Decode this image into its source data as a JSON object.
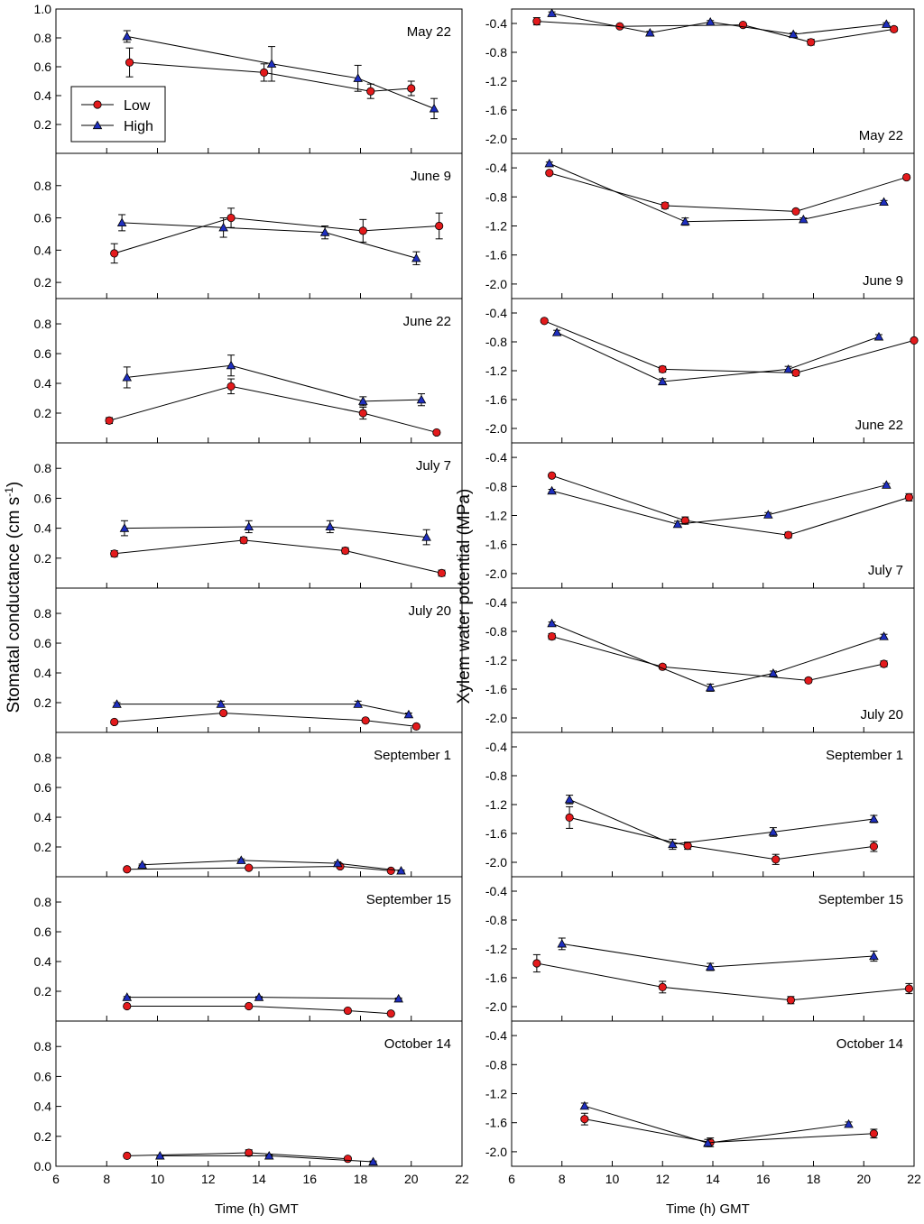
{
  "colors": {
    "low": "#e31a1c",
    "high": "#1f2fbf",
    "axis": "#000000"
  },
  "legend": {
    "low_label": "Low",
    "high_label": "High"
  },
  "left_ylabel_main": "Stomatal conductance (cm s",
  "left_ylabel_sup": "-1",
  "left_ylabel_end": ")",
  "right_ylabel": "Xylem water potential (MPa)",
  "left_xlabel": "Time (h) GMT",
  "right_xlabel": "Time (h) GMT",
  "chart_data": [
    {
      "type": "scatter",
      "column": "left",
      "title": "May 22",
      "xlim": [
        6,
        22
      ],
      "ylim": [
        0,
        1.0
      ],
      "yticks": [
        0.2,
        0.4,
        0.6,
        0.8,
        1.0
      ],
      "ytick_labels": [
        "0.2",
        "0.4",
        "0.6",
        "0.8",
        "1.0"
      ],
      "series": [
        {
          "name": "Low",
          "x": [
            8.9,
            14.2,
            18.4,
            20
          ],
          "y": [
            0.63,
            0.56,
            0.43,
            0.45
          ],
          "err": [
            0.1,
            0.06,
            0.05,
            0.05
          ]
        },
        {
          "name": "High",
          "x": [
            8.8,
            14.5,
            17.9,
            20.9
          ],
          "y": [
            0.81,
            0.62,
            0.52,
            0.31
          ],
          "err": [
            0.04,
            0.12,
            0.09,
            0.07
          ]
        }
      ]
    },
    {
      "type": "scatter",
      "column": "left",
      "title": "June 9",
      "xlim": [
        6,
        22
      ],
      "ylim": [
        0.1,
        1.0
      ],
      "yticks": [
        0.2,
        0.4,
        0.6,
        0.8
      ],
      "ytick_labels": [
        "0.2",
        "0.4",
        "0.6",
        "0.8"
      ],
      "series": [
        {
          "name": "Low",
          "x": [
            8.3,
            12.9,
            18.1,
            21.1
          ],
          "y": [
            0.38,
            0.6,
            0.52,
            0.55
          ],
          "err": [
            0.06,
            0.06,
            0.07,
            0.08
          ]
        },
        {
          "name": "High",
          "x": [
            8.6,
            12.6,
            16.6,
            20.2
          ],
          "y": [
            0.57,
            0.54,
            0.51,
            0.35
          ],
          "err": [
            0.05,
            0.06,
            0.04,
            0.04
          ]
        }
      ]
    },
    {
      "type": "scatter",
      "column": "left",
      "title": "June 22",
      "xlim": [
        6,
        22
      ],
      "ylim": [
        0.0,
        0.97
      ],
      "yticks": [
        0.2,
        0.4,
        0.6,
        0.8
      ],
      "ytick_labels": [
        "0.2",
        "0.4",
        "0.6",
        "0.8"
      ],
      "series": [
        {
          "name": "Low",
          "x": [
            8.1,
            12.9,
            18.1,
            21
          ],
          "y": [
            0.15,
            0.38,
            0.2,
            0.07
          ],
          "err": [
            0.02,
            0.05,
            0.04,
            0.01
          ]
        },
        {
          "name": "High",
          "x": [
            8.8,
            12.9,
            18.1,
            20.4
          ],
          "y": [
            0.44,
            0.52,
            0.28,
            0.29
          ],
          "err": [
            0.07,
            0.07,
            0.03,
            0.04
          ]
        }
      ]
    },
    {
      "type": "scatter",
      "column": "left",
      "title": "July 7",
      "xlim": [
        6,
        22
      ],
      "ylim": [
        0.0,
        0.97
      ],
      "yticks": [
        0.2,
        0.4,
        0.6,
        0.8
      ],
      "ytick_labels": [
        "0.2",
        "0.4",
        "0.6",
        "0.8"
      ],
      "series": [
        {
          "name": "Low",
          "x": [
            8.3,
            13.4,
            17.4,
            21.2
          ],
          "y": [
            0.23,
            0.32,
            0.25,
            0.1
          ],
          "err": [
            0.02,
            0.02,
            0.02,
            0.02
          ]
        },
        {
          "name": "High",
          "x": [
            8.7,
            13.6,
            16.8,
            20.6
          ],
          "y": [
            0.4,
            0.41,
            0.41,
            0.34
          ],
          "err": [
            0.05,
            0.04,
            0.04,
            0.05
          ]
        }
      ]
    },
    {
      "type": "scatter",
      "column": "left",
      "title": "July 20",
      "xlim": [
        6,
        22
      ],
      "ylim": [
        0.0,
        0.97
      ],
      "yticks": [
        0.2,
        0.4,
        0.6,
        0.8
      ],
      "ytick_labels": [
        "0.2",
        "0.4",
        "0.6",
        "0.8"
      ],
      "series": [
        {
          "name": "Low",
          "x": [
            8.3,
            12.6,
            18.2,
            20.2
          ],
          "y": [
            0.07,
            0.13,
            0.08,
            0.04
          ],
          "err": [
            0.01,
            0.01,
            0.01,
            0.01
          ]
        },
        {
          "name": "High",
          "x": [
            8.4,
            12.5,
            17.9,
            19.9
          ],
          "y": [
            0.19,
            0.19,
            0.19,
            0.12
          ],
          "err": [
            0.01,
            0.02,
            0.02,
            0.01
          ]
        }
      ]
    },
    {
      "type": "scatter",
      "column": "left",
      "title": "September 1",
      "xlim": [
        6,
        22
      ],
      "ylim": [
        0.0,
        0.97
      ],
      "yticks": [
        0.2,
        0.4,
        0.6,
        0.8
      ],
      "ytick_labels": [
        "0.2",
        "0.4",
        "0.6",
        "0.8"
      ],
      "series": [
        {
          "name": "Low",
          "x": [
            8.8,
            13.6,
            17.2,
            19.2
          ],
          "y": [
            0.05,
            0.06,
            0.07,
            0.04
          ],
          "err": [
            0.005,
            0.005,
            0.005,
            0.005
          ]
        },
        {
          "name": "High",
          "x": [
            9.4,
            13.3,
            17.1,
            19.6
          ],
          "y": [
            0.08,
            0.11,
            0.09,
            0.04
          ],
          "err": [
            0.005,
            0.01,
            0.01,
            0.005
          ]
        }
      ]
    },
    {
      "type": "scatter",
      "column": "left",
      "title": "September 15",
      "xlim": [
        6,
        22
      ],
      "ylim": [
        0.0,
        0.97
      ],
      "yticks": [
        0.2,
        0.4,
        0.6,
        0.8
      ],
      "ytick_labels": [
        "0.2",
        "0.4",
        "0.6",
        "0.8"
      ],
      "series": [
        {
          "name": "Low",
          "x": [
            8.8,
            13.6,
            17.5,
            19.2
          ],
          "y": [
            0.1,
            0.1,
            0.07,
            0.05
          ],
          "err": [
            0.005,
            0.01,
            0.005,
            0.005
          ]
        },
        {
          "name": "High",
          "x": [
            8.8,
            14,
            19.5
          ],
          "y": [
            0.16,
            0.16,
            0.15
          ],
          "err": [
            0.005,
            0.005,
            0.005
          ]
        }
      ]
    },
    {
      "type": "scatter",
      "column": "left",
      "title": "October 14",
      "xlim": [
        6,
        22
      ],
      "ylim": [
        0.0,
        0.97
      ],
      "yticks": [
        0.0,
        0.2,
        0.4,
        0.6,
        0.8
      ],
      "ytick_labels": [
        "0.0",
        "0.2",
        "0.4",
        "0.6",
        "0.8"
      ],
      "xticks": [
        6,
        8,
        10,
        12,
        14,
        16,
        18,
        20,
        22
      ],
      "xtick_labels": [
        "6",
        "8",
        "10",
        "12",
        "14",
        "16",
        "18",
        "20",
        "22"
      ],
      "series": [
        {
          "name": "Low",
          "x": [
            8.8,
            13.6,
            17.5
          ],
          "y": [
            0.07,
            0.09,
            0.05
          ],
          "err": [
            0.005,
            0.02,
            0.01
          ]
        },
        {
          "name": "High",
          "x": [
            10.1,
            14.4,
            18.5
          ],
          "y": [
            0.07,
            0.07,
            0.03
          ],
          "err": [
            0.005,
            0.005,
            0.005
          ]
        }
      ]
    },
    {
      "type": "scatter",
      "column": "right",
      "title": "May 22",
      "xlim": [
        6,
        22
      ],
      "ylim": [
        -2.2,
        -0.2
      ],
      "yticks": [
        -0.4,
        -0.8,
        -1.2,
        -1.6,
        -2.0
      ],
      "ytick_labels": [
        "-0.4",
        "-0.8",
        "-1.2",
        "-1.6",
        "-2.0"
      ],
      "series": [
        {
          "name": "Low",
          "x": [
            7.0,
            10.3,
            15.2,
            17.9,
            21.2
          ],
          "y": [
            -0.37,
            -0.44,
            -0.42,
            -0.66,
            -0.48
          ],
          "err": [
            0.05,
            0.02,
            0.02,
            0.04,
            0.03
          ]
        },
        {
          "name": "High",
          "x": [
            7.6,
            11.5,
            13.9,
            17.2,
            20.9
          ],
          "y": [
            -0.26,
            -0.53,
            -0.38,
            -0.55,
            -0.41
          ],
          "err": [
            0.02,
            0.02,
            0.02,
            0.02,
            0.02
          ]
        }
      ]
    },
    {
      "type": "scatter",
      "column": "right",
      "title": "June 9",
      "xlim": [
        6,
        22
      ],
      "ylim": [
        -2.2,
        -0.2
      ],
      "yticks": [
        -0.4,
        -0.8,
        -1.2,
        -1.6,
        -2.0
      ],
      "ytick_labels": [
        "-0.4",
        "-0.8",
        "-1.2",
        "-1.6",
        "-2.0"
      ],
      "series": [
        {
          "name": "Low",
          "x": [
            7.5,
            12.1,
            17.3,
            21.7
          ],
          "y": [
            -0.47,
            -0.92,
            -1.0,
            -0.53
          ],
          "err": [
            0.02,
            0.04,
            0.02,
            0.02
          ]
        },
        {
          "name": "High",
          "x": [
            7.5,
            12.9,
            17.6,
            20.8
          ],
          "y": [
            -0.34,
            -1.14,
            -1.11,
            -0.87
          ],
          "err": [
            0.02,
            0.05,
            0.02,
            0.02
          ]
        }
      ]
    },
    {
      "type": "scatter",
      "column": "right",
      "title": "June 22",
      "xlim": [
        6,
        22
      ],
      "ylim": [
        -2.2,
        -0.2
      ],
      "yticks": [
        -0.4,
        -0.8,
        -1.2,
        -1.6,
        -2.0
      ],
      "ytick_labels": [
        "-0.4",
        "-0.8",
        "-1.2",
        "-1.6",
        "-2.0"
      ],
      "series": [
        {
          "name": "Low",
          "x": [
            7.3,
            12,
            17.3,
            22
          ],
          "y": [
            -0.51,
            -1.18,
            -1.23,
            -0.78
          ],
          "err": [
            0.02,
            0.04,
            0.04,
            0.02
          ]
        },
        {
          "name": "High",
          "x": [
            7.8,
            12,
            17,
            20.6
          ],
          "y": [
            -0.67,
            -1.35,
            -1.18,
            -0.73
          ],
          "err": [
            0.03,
            0.04,
            0.04,
            0.03
          ]
        }
      ]
    },
    {
      "type": "scatter",
      "column": "right",
      "title": "July 7",
      "xlim": [
        6,
        22
      ],
      "ylim": [
        -2.2,
        -0.2
      ],
      "yticks": [
        -0.4,
        -0.8,
        -1.2,
        -1.6,
        -2.0
      ],
      "ytick_labels": [
        "-0.4",
        "-0.8",
        "-1.2",
        "-1.6",
        "-2.0"
      ],
      "series": [
        {
          "name": "Low",
          "x": [
            7.6,
            12.9,
            17,
            21.8
          ],
          "y": [
            -0.65,
            -1.27,
            -1.47,
            -0.95
          ],
          "err": [
            0.02,
            0.05,
            0.04,
            0.05
          ]
        },
        {
          "name": "High",
          "x": [
            7.6,
            12.6,
            16.2,
            20.9
          ],
          "y": [
            -0.86,
            -1.32,
            -1.19,
            -0.78
          ],
          "err": [
            0.02,
            0.04,
            0.03,
            0.02
          ]
        }
      ]
    },
    {
      "type": "scatter",
      "column": "right",
      "title": "July 20",
      "xlim": [
        6,
        22
      ],
      "ylim": [
        -2.2,
        -0.2
      ],
      "yticks": [
        -0.4,
        -0.8,
        -1.2,
        -1.6,
        -2.0
      ],
      "ytick_labels": [
        "-0.4",
        "-0.8",
        "-1.2",
        "-1.6",
        "-2.0"
      ],
      "series": [
        {
          "name": "Low",
          "x": [
            7.6,
            12,
            17.8,
            20.8
          ],
          "y": [
            -0.87,
            -1.29,
            -1.48,
            -1.25
          ],
          "err": [
            0.04,
            0.03,
            0.03,
            0.04
          ]
        },
        {
          "name": "High",
          "x": [
            7.6,
            13.9,
            16.4,
            20.8
          ],
          "y": [
            -0.69,
            -1.58,
            -1.38,
            -0.87
          ],
          "err": [
            0.02,
            0.05,
            0.03,
            0.03
          ]
        }
      ]
    },
    {
      "type": "scatter",
      "column": "right",
      "title": "September 1",
      "xlim": [
        6,
        22
      ],
      "ylim": [
        -2.2,
        -0.2
      ],
      "yticks": [
        -0.4,
        -0.8,
        -1.2,
        -1.6,
        -2.0
      ],
      "ytick_labels": [
        "-0.4",
        "-0.8",
        "-1.2",
        "-1.6",
        "-2.0"
      ],
      "series": [
        {
          "name": "Low",
          "x": [
            8.3,
            13,
            16.5,
            20.4
          ],
          "y": [
            -1.38,
            -1.77,
            -1.96,
            -1.78
          ],
          "err": [
            0.15,
            0.05,
            0.07,
            0.07
          ]
        },
        {
          "name": "High",
          "x": [
            8.3,
            12.4,
            16.4,
            20.4
          ],
          "y": [
            -1.13,
            -1.75,
            -1.58,
            -1.4
          ],
          "err": [
            0.06,
            0.07,
            0.06,
            0.05
          ]
        }
      ]
    },
    {
      "type": "scatter",
      "column": "right",
      "title": "September 15",
      "xlim": [
        6,
        22
      ],
      "ylim": [
        -2.2,
        -0.2
      ],
      "yticks": [
        -0.4,
        -0.8,
        -1.2,
        -1.6,
        -2.0
      ],
      "ytick_labels": [
        "-0.4",
        "-0.8",
        "-1.2",
        "-1.6",
        "-2.0"
      ],
      "series": [
        {
          "name": "Low",
          "x": [
            7,
            12,
            17.1,
            21.8
          ],
          "y": [
            -1.4,
            -1.73,
            -1.91,
            -1.75
          ],
          "err": [
            0.12,
            0.08,
            0.05,
            0.07
          ]
        },
        {
          "name": "High",
          "x": [
            8.0,
            13.9,
            20.4
          ],
          "y": [
            -1.13,
            -1.45,
            -1.3
          ],
          "err": [
            0.08,
            0.05,
            0.07
          ]
        }
      ]
    },
    {
      "type": "scatter",
      "column": "right",
      "title": "October 14",
      "xlim": [
        6,
        22
      ],
      "ylim": [
        -2.2,
        -0.2
      ],
      "yticks": [
        -0.4,
        -0.8,
        -1.2,
        -1.6,
        -2.0
      ],
      "ytick_labels": [
        "-0.4",
        "-0.8",
        "-1.2",
        "-1.6",
        "-2.0"
      ],
      "xticks": [
        6,
        8,
        10,
        12,
        14,
        16,
        18,
        20,
        22
      ],
      "xtick_labels": [
        "6",
        "8",
        "10",
        "12",
        "14",
        "16",
        "18",
        "20",
        "22"
      ],
      "series": [
        {
          "name": "Low",
          "x": [
            8.9,
            13.9,
            20.4
          ],
          "y": [
            -1.55,
            -1.87,
            -1.75
          ],
          "err": [
            0.08,
            0.06,
            0.06
          ]
        },
        {
          "name": "High",
          "x": [
            8.9,
            13.8,
            19.4
          ],
          "y": [
            -1.37,
            -1.88,
            -1.62
          ],
          "err": [
            0.04,
            0.05,
            0.03
          ]
        }
      ]
    }
  ]
}
